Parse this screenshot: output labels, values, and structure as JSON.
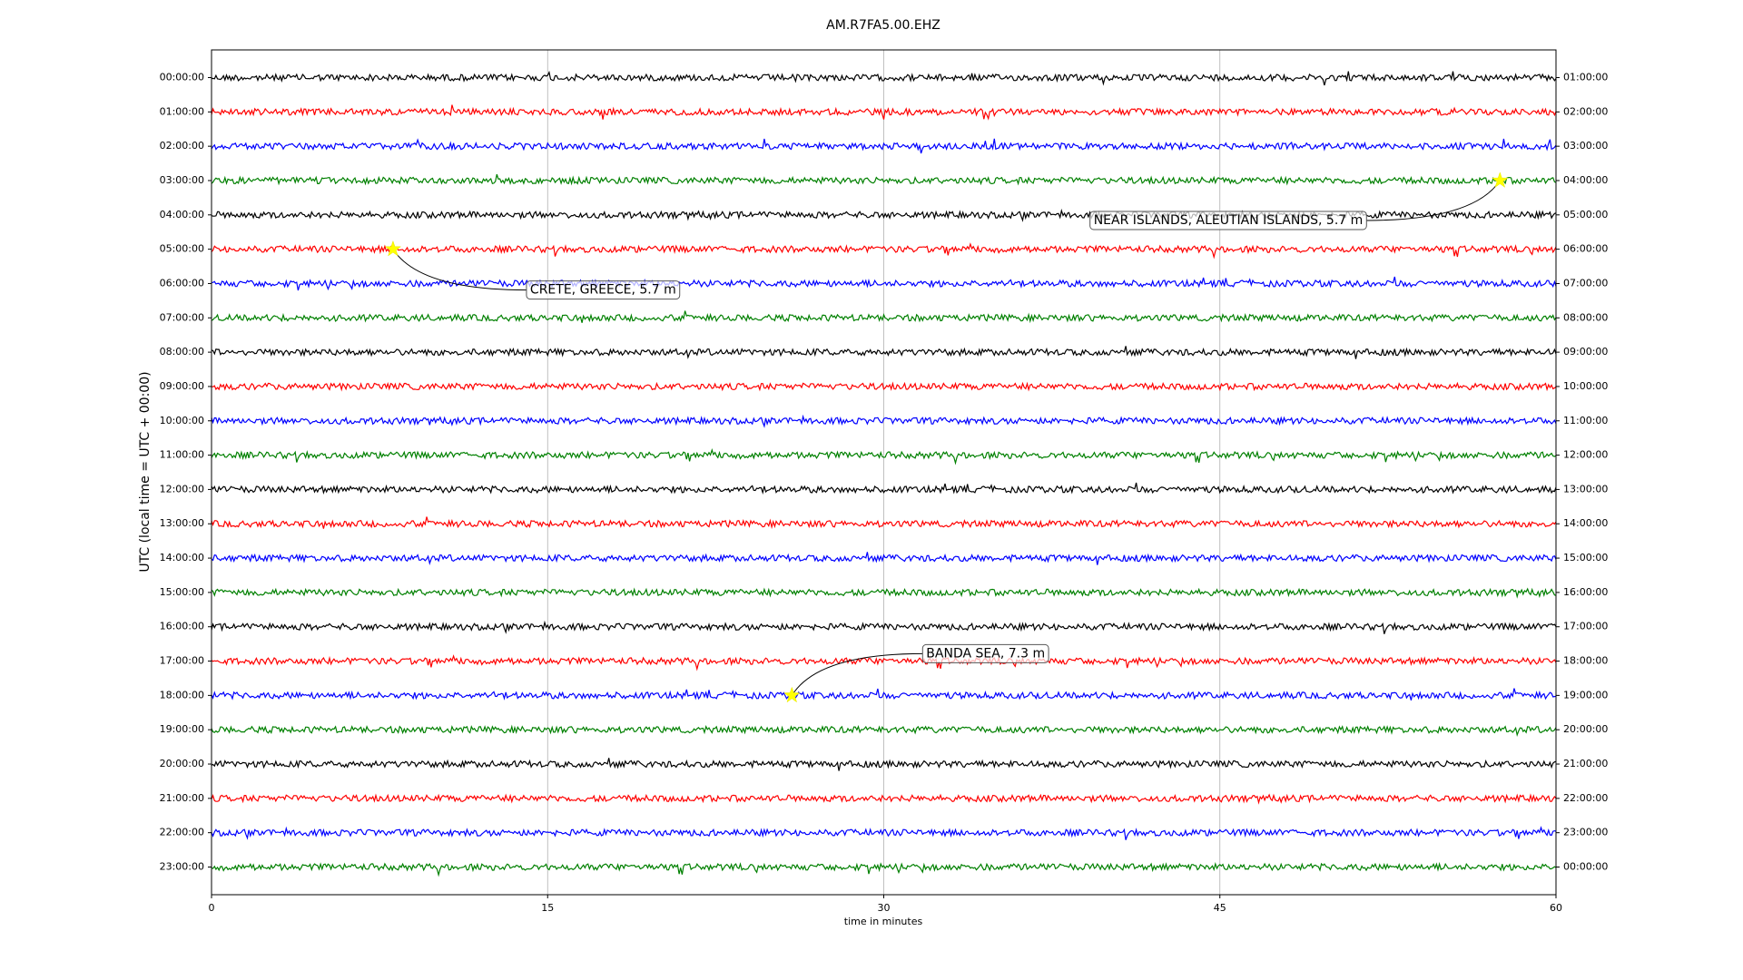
{
  "chart_data": {
    "type": "helicorder",
    "title": "AM.R7FA5.00.EHZ",
    "x_label": "time in minutes",
    "y_label": "UTC (local time = UTC + 00:00)",
    "xlim": [
      0,
      60
    ],
    "xticks": [
      0,
      15,
      30,
      45,
      60
    ],
    "grid": true,
    "colors": [
      "#000000",
      "#ff0000",
      "#0000ff",
      "#008000"
    ],
    "row_labels_left": [
      "00:00:00",
      "01:00:00",
      "02:00:00",
      "03:00:00",
      "04:00:00",
      "05:00:00",
      "06:00:00",
      "07:00:00",
      "08:00:00",
      "09:00:00",
      "10:00:00",
      "11:00:00",
      "12:00:00",
      "13:00:00",
      "14:00:00",
      "15:00:00",
      "16:00:00",
      "17:00:00",
      "18:00:00",
      "19:00:00",
      "20:00:00",
      "21:00:00",
      "22:00:00",
      "23:00:00"
    ],
    "row_labels_right": [
      "01:00:00",
      "02:00:00",
      "03:00:00",
      "04:00:00",
      "05:00:00",
      "06:00:00",
      "07:00:00",
      "08:00:00",
      "09:00:00",
      "10:00:00",
      "11:00:00",
      "12:00:00",
      "13:00:00",
      "14:00:00",
      "15:00:00",
      "16:00:00",
      "17:00:00",
      "18:00:00",
      "19:00:00",
      "20:00:00",
      "21:00:00",
      "22:00:00",
      "23:00:00",
      "00:00:00"
    ],
    "events": [
      {
        "label": "CRETE, GREECE, 5.7 m",
        "time_min": 8.1,
        "row": 5
      },
      {
        "label": "NEAR ISLANDS, ALEUTIAN ISLANDS, 5.7 m",
        "time_min": 57.5,
        "row": 3
      },
      {
        "label": "BANDA SEA, 7.3 m",
        "time_min": 25.9,
        "row": 18
      }
    ]
  }
}
